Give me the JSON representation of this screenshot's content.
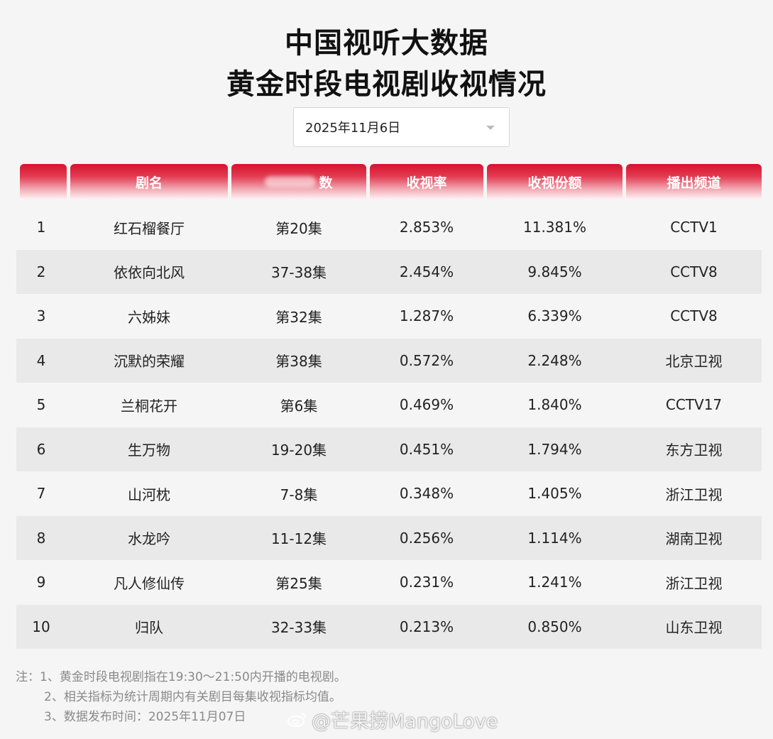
{
  "title": {
    "line1": "中国视听大数据",
    "line2": "黄金时段电视剧收视情况"
  },
  "date_select": {
    "value": "2025年11月6日"
  },
  "table": {
    "headers": [
      "",
      "剧名",
      "数",
      "收视率",
      "收视份额",
      "播出频道"
    ],
    "rows": [
      {
        "rank": "1",
        "name": "红石榴餐厅",
        "episode": "第20集",
        "rating": "2.853%",
        "share": "11.381%",
        "channel": "CCTV1"
      },
      {
        "rank": "2",
        "name": "依依向北风",
        "episode": "37-38集",
        "rating": "2.454%",
        "share": "9.845%",
        "channel": "CCTV8"
      },
      {
        "rank": "3",
        "name": "六姊妹",
        "episode": "第32集",
        "rating": "1.287%",
        "share": "6.339%",
        "channel": "CCTV8"
      },
      {
        "rank": "4",
        "name": "沉默的荣耀",
        "episode": "第38集",
        "rating": "0.572%",
        "share": "2.248%",
        "channel": "北京卫视"
      },
      {
        "rank": "5",
        "name": "兰桐花开",
        "episode": "第6集",
        "rating": "0.469%",
        "share": "1.840%",
        "channel": "CCTV17"
      },
      {
        "rank": "6",
        "name": "生万物",
        "episode": "19-20集",
        "rating": "0.451%",
        "share": "1.794%",
        "channel": "东方卫视"
      },
      {
        "rank": "7",
        "name": "山河枕",
        "episode": "7-8集",
        "rating": "0.348%",
        "share": "1.405%",
        "channel": "浙江卫视"
      },
      {
        "rank": "8",
        "name": "水龙吟",
        "episode": "11-12集",
        "rating": "0.256%",
        "share": "1.114%",
        "channel": "湖南卫视"
      },
      {
        "rank": "9",
        "name": "凡人修仙传",
        "episode": "第25集",
        "rating": "0.231%",
        "share": "1.241%",
        "channel": "浙江卫视"
      },
      {
        "rank": "10",
        "name": "归队",
        "episode": "32-33集",
        "rating": "0.213%",
        "share": "0.850%",
        "channel": "山东卫视"
      }
    ]
  },
  "notes": {
    "n1": "注：1、黄金时段电视剧指在19:30～21:50内开播的电视剧。",
    "n2": "2、相关指标为统计周期内有关剧目每集收视指标均值。",
    "n3": "3、数据发布时间：2025年11月07日"
  },
  "watermark": {
    "text": "@芒果捞MangoLove"
  },
  "colors": {
    "header_red": "#d8122e",
    "row_alt": "#e9e9e9",
    "background": "#f5f5f5"
  }
}
